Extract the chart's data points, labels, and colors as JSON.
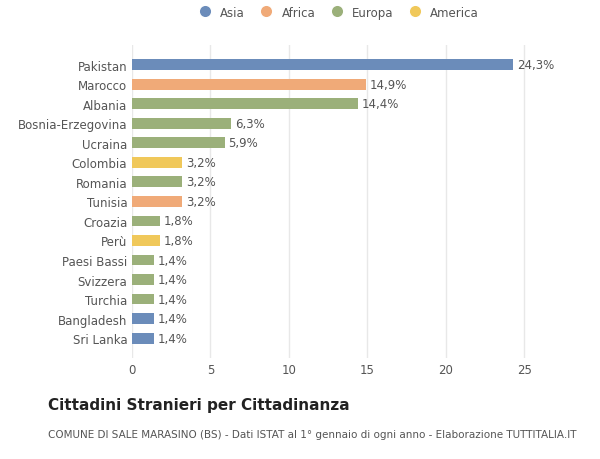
{
  "categories": [
    "Sri Lanka",
    "Bangladesh",
    "Turchia",
    "Svizzera",
    "Paesi Bassi",
    "Perù",
    "Croazia",
    "Tunisia",
    "Romania",
    "Colombia",
    "Ucraina",
    "Bosnia-Erzegovina",
    "Albania",
    "Marocco",
    "Pakistan"
  ],
  "values": [
    1.4,
    1.4,
    1.4,
    1.4,
    1.4,
    1.8,
    1.8,
    3.2,
    3.2,
    3.2,
    5.9,
    6.3,
    14.4,
    14.9,
    24.3
  ],
  "labels": [
    "1,4%",
    "1,4%",
    "1,4%",
    "1,4%",
    "1,4%",
    "1,8%",
    "1,8%",
    "3,2%",
    "3,2%",
    "3,2%",
    "5,9%",
    "6,3%",
    "14,4%",
    "14,9%",
    "24,3%"
  ],
  "colors": [
    "#6b8cba",
    "#6b8cba",
    "#9bb07a",
    "#9bb07a",
    "#9bb07a",
    "#f0c85a",
    "#9bb07a",
    "#f0aa78",
    "#9bb07a",
    "#f0c85a",
    "#9bb07a",
    "#9bb07a",
    "#9bb07a",
    "#f0aa78",
    "#6b8cba"
  ],
  "legend": [
    {
      "label": "Asia",
      "color": "#6b8cba"
    },
    {
      "label": "Africa",
      "color": "#f0aa78"
    },
    {
      "label": "Europa",
      "color": "#9bb07a"
    },
    {
      "label": "America",
      "color": "#f0c85a"
    }
  ],
  "xlim": [
    0,
    26
  ],
  "xticks": [
    0,
    5,
    10,
    15,
    20,
    25
  ],
  "title": "Cittadini Stranieri per Cittadinanza",
  "subtitle": "COMUNE DI SALE MARASINO (BS) - Dati ISTAT al 1° gennaio di ogni anno - Elaborazione TUTTITALIA.IT",
  "plot_bg": "#ffffff",
  "fig_bg": "#ffffff",
  "grid_color": "#e8e8e8",
  "bar_height": 0.55,
  "label_fontsize": 8.5,
  "tick_fontsize": 8.5,
  "title_fontsize": 11,
  "subtitle_fontsize": 7.5,
  "text_color": "#555555",
  "title_color": "#222222"
}
